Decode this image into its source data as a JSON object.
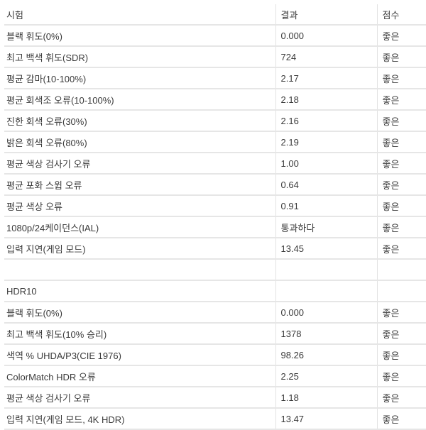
{
  "header": {
    "test": "시험",
    "result": "결과",
    "score": "점수"
  },
  "rows": [
    {
      "test": "블랙 휘도(0%)",
      "result": "0.000",
      "score": "좋은"
    },
    {
      "test": "최고 백색 휘도(SDR)",
      "result": "724",
      "score": "좋은"
    },
    {
      "test": "평균 감마(10-100%)",
      "result": "2.17",
      "score": "좋은"
    },
    {
      "test": "평균 회색조 오류(10-100%)",
      "result": "2.18",
      "score": "좋은"
    },
    {
      "test": "진한 회색 오류(30%)",
      "result": "2.16",
      "score": "좋은"
    },
    {
      "test": "밝은 회색 오류(80%)",
      "result": "2.19",
      "score": "좋은"
    },
    {
      "test": "평균 색상 검사기 오류",
      "result": "1.00",
      "score": "좋은"
    },
    {
      "test": "평균 포화 스윕 오류",
      "result": "0.64",
      "score": "좋은"
    },
    {
      "test": "평균 색상 오류",
      "result": "0.91",
      "score": "좋은"
    },
    {
      "test": "1080p/24케이던스(IAL)",
      "result": "통과하다",
      "score": "좋은"
    },
    {
      "test": "입력 지연(게임 모드)",
      "result": "13.45",
      "score": "좋은"
    },
    {
      "test": "",
      "result": "",
      "score": ""
    },
    {
      "test": "HDR10",
      "result": "",
      "score": ""
    },
    {
      "test": "블랙 휘도(0%)",
      "result": "0.000",
      "score": "좋은"
    },
    {
      "test": "최고 백색 휘도(10% 승리)",
      "result": "1378",
      "score": "좋은"
    },
    {
      "test": "색역 % UHDA/P3(CIE 1976)",
      "result": "98.26",
      "score": "좋은"
    },
    {
      "test": "ColorMatch HDR 오류",
      "result": "2.25",
      "score": "좋은"
    },
    {
      "test": "평균 색상 검사기 오류",
      "result": "1.18",
      "score": "좋은"
    },
    {
      "test": "입력 지연(게임 모드, 4K HDR)",
      "result": "13.47",
      "score": "좋은"
    }
  ]
}
